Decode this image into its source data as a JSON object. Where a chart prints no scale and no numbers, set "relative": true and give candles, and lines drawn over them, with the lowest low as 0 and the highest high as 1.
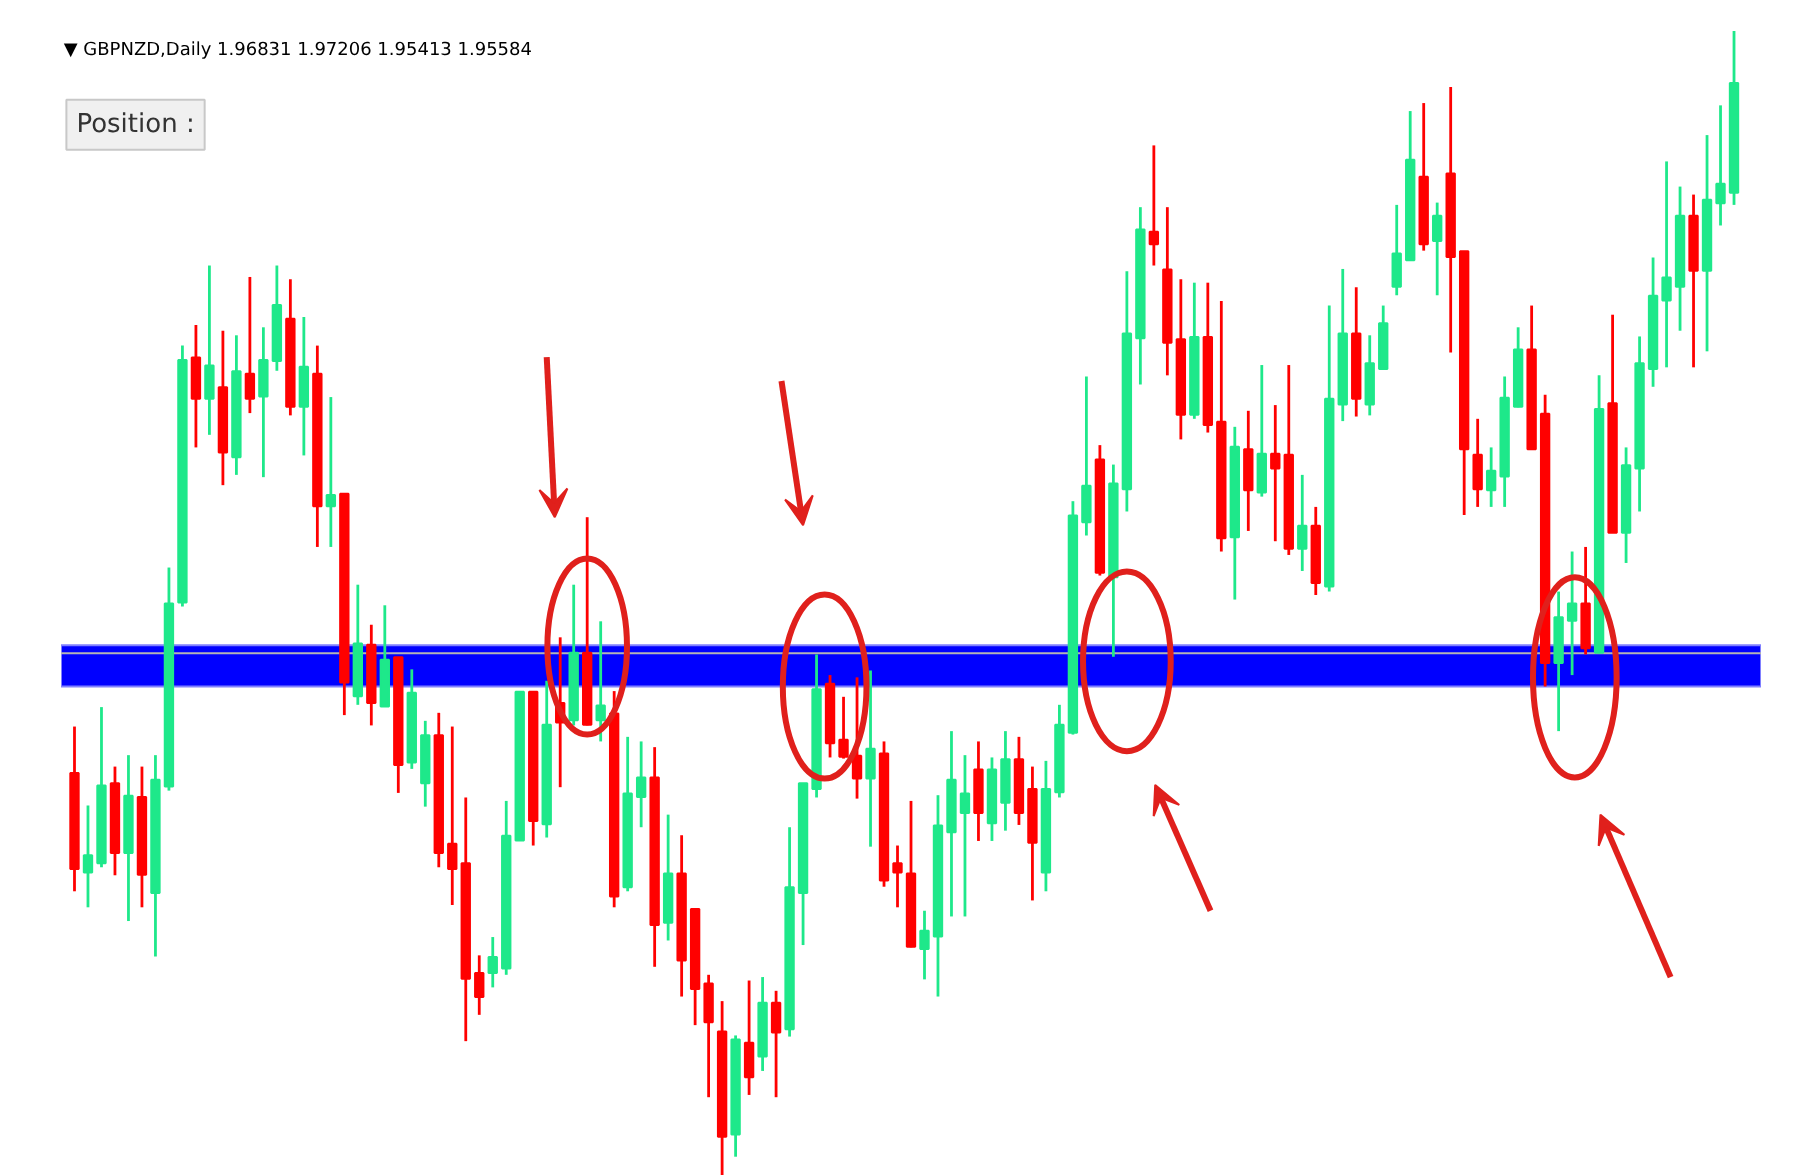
{
  "chart_data": {
    "type": "candlestick",
    "title": "▼ GBPNZD,Daily  1.96831 1.97206 1.95413 1.95584",
    "annotations": [
      "Position :"
    ],
    "relative": true,
    "grid": false,
    "categories": [
      null,
      null,
      null,
      null,
      null,
      null,
      null,
      null,
      null,
      null,
      null,
      null,
      null,
      null,
      null,
      null,
      null,
      null,
      null,
      null,
      null,
      null,
      null,
      null,
      null,
      null,
      null,
      null,
      null,
      null,
      null,
      null,
      null,
      null,
      null,
      null,
      null,
      null,
      null,
      null,
      null,
      null,
      null,
      null,
      null,
      null,
      null,
      null,
      null,
      null,
      null,
      null,
      null,
      null,
      null,
      null,
      null,
      null,
      null,
      null,
      null,
      null,
      null,
      null,
      null,
      null,
      null,
      null,
      null,
      null,
      null,
      null,
      null,
      null,
      null,
      null,
      null,
      null,
      null,
      null,
      null,
      null,
      null,
      null,
      null,
      null,
      null,
      null,
      null,
      null,
      null,
      null,
      null,
      null,
      null,
      null,
      null,
      null,
      null,
      null,
      null,
      null,
      null,
      null,
      null,
      null,
      null,
      null,
      null,
      null,
      null,
      null,
      null,
      null,
      null,
      null,
      null,
      null,
      null,
      null,
      null,
      null,
      null,
      null
    ],
    "ohlc": [
      [
        0.35,
        0.392,
        0.248,
        0.269
      ],
      [
        0.266,
        0.323,
        0.234,
        0.278
      ],
      [
        0.274,
        0.409,
        0.269,
        0.339
      ],
      [
        0.341,
        0.357,
        0.262,
        0.283
      ],
      [
        0.283,
        0.367,
        0.222,
        0.33
      ],
      [
        0.329,
        0.357,
        0.234,
        0.264
      ],
      [
        0.248,
        0.367,
        0.191,
        0.344
      ],
      [
        0.341,
        0.531,
        0.336,
        0.498
      ],
      [
        0.502,
        0.725,
        0.497,
        0.711
      ],
      [
        0.713,
        0.743,
        0.636,
        0.68
      ],
      [
        0.68,
        0.795,
        0.647,
        0.706
      ],
      [
        0.687,
        0.738,
        0.603,
        0.633
      ],
      [
        0.629,
        0.734,
        0.612,
        0.701
      ],
      [
        0.699,
        0.785,
        0.666,
        0.68
      ],
      [
        0.682,
        0.741,
        0.61,
        0.711
      ],
      [
        0.713,
        0.795,
        0.703,
        0.759
      ],
      [
        0.747,
        0.783,
        0.664,
        0.673
      ],
      [
        0.673,
        0.75,
        0.629,
        0.705
      ],
      [
        0.699,
        0.725,
        0.549,
        0.586
      ],
      [
        0.586,
        0.68,
        0.549,
        0.593
      ],
      [
        0.594,
        0.594,
        0.402,
        0.432
      ],
      [
        0.42,
        0.516,
        0.411,
        0.463
      ],
      [
        0.462,
        0.481,
        0.393,
        0.414
      ],
      [
        0.411,
        0.498,
        0.411,
        0.449
      ],
      [
        0.451,
        0.451,
        0.334,
        0.36
      ],
      [
        0.362,
        0.442,
        0.355,
        0.42
      ],
      [
        0.344,
        0.397,
        0.322,
        0.383
      ],
      [
        0.383,
        0.404,
        0.269,
        0.283
      ],
      [
        0.288,
        0.392,
        0.236,
        0.269
      ],
      [
        0.271,
        0.33,
        0.117,
        0.173
      ],
      [
        0.175,
        0.192,
        0.14,
        0.157
      ],
      [
        0.178,
        0.208,
        0.164,
        0.189
      ],
      [
        0.182,
        0.327,
        0.175,
        0.295
      ],
      [
        0.294,
        0.421,
        0.292,
        0.421
      ],
      [
        0.421,
        0.421,
        0.288,
        0.311
      ],
      [
        0.308,
        0.432,
        0.295,
        0.392
      ],
      [
        0.411,
        0.47,
        0.339,
        0.397
      ],
      [
        0.399,
        0.516,
        0.393,
        0.455
      ],
      [
        0.455,
        0.575,
        0.393,
        0.395
      ],
      [
        0.399,
        0.484,
        0.379,
        0.409
      ],
      [
        0.402,
        0.423,
        0.234,
        0.245
      ],
      [
        0.253,
        0.383,
        0.248,
        0.332
      ],
      [
        0.332,
        0.379,
        0.304,
        0.346
      ],
      [
        0.346,
        0.374,
        0.182,
        0.22
      ],
      [
        0.222,
        0.315,
        0.205,
        0.262
      ],
      [
        0.262,
        0.297,
        0.156,
        0.189
      ],
      [
        0.231,
        0.231,
        0.131,
        0.164
      ],
      [
        0.166,
        0.175,
        0.068,
        0.135
      ],
      [
        0.124,
        0.152,
        0.0,
        0.035
      ],
      [
        0.037,
        0.122,
        0.016,
        0.117
      ],
      [
        0.114,
        0.17,
        0.07,
        0.087
      ],
      [
        0.105,
        0.173,
        0.091,
        0.149
      ],
      [
        0.149,
        0.161,
        0.068,
        0.126
      ],
      [
        0.129,
        0.304,
        0.121,
        0.25
      ],
      [
        0.248,
        0.341,
        0.201,
        0.341
      ],
      [
        0.339,
        0.455,
        0.33,
        0.423
      ],
      [
        0.428,
        0.437,
        0.365,
        0.379
      ],
      [
        0.379,
        0.418,
        0.364,
        0.367
      ],
      [
        0.365,
        0.435,
        0.329,
        0.348
      ],
      [
        0.348,
        0.441,
        0.287,
        0.371
      ],
      [
        0.367,
        0.379,
        0.252,
        0.259
      ],
      [
        0.271,
        0.288,
        0.234,
        0.266
      ],
      [
        0.262,
        0.327,
        0.199,
        0.201
      ],
      [
        0.199,
        0.231,
        0.171,
        0.212
      ],
      [
        0.21,
        0.332,
        0.156,
        0.304
      ],
      [
        0.301,
        0.388,
        0.226,
        0.344
      ],
      [
        0.318,
        0.367,
        0.226,
        0.332
      ],
      [
        0.353,
        0.379,
        0.292,
        0.318
      ],
      [
        0.309,
        0.365,
        0.292,
        0.353
      ],
      [
        0.327,
        0.388,
        0.301,
        0.362
      ],
      [
        0.362,
        0.383,
        0.306,
        0.318
      ],
      [
        0.336,
        0.357,
        0.24,
        0.292
      ],
      [
        0.266,
        0.362,
        0.248,
        0.336
      ],
      [
        0.336,
        0.411,
        0.33,
        0.392
      ],
      [
        0.388,
        0.589,
        0.385,
        0.575
      ],
      [
        0.572,
        0.698,
        0.559,
        0.601
      ],
      [
        0.624,
        0.638,
        0.524,
        0.528
      ],
      [
        0.524,
        0.621,
        0.453,
        0.603
      ],
      [
        0.601,
        0.79,
        0.58,
        0.734
      ],
      [
        0.733,
        0.846,
        0.691,
        0.825
      ],
      [
        0.823,
        0.9,
        0.795,
        0.815
      ],
      [
        0.79,
        0.846,
        0.699,
        0.729
      ],
      [
        0.729,
        0.783,
        0.643,
        0.666
      ],
      [
        0.666,
        0.78,
        0.661,
        0.731
      ],
      [
        0.731,
        0.78,
        0.649,
        0.657
      ],
      [
        0.657,
        0.764,
        0.545,
        0.558
      ],
      [
        0.559,
        0.654,
        0.503,
        0.635
      ],
      [
        0.633,
        0.668,
        0.563,
        0.6
      ],
      [
        0.598,
        0.708,
        0.593,
        0.629
      ],
      [
        0.629,
        0.673,
        0.554,
        0.619
      ],
      [
        0.628,
        0.708,
        0.542,
        0.549
      ],
      [
        0.549,
        0.612,
        0.528,
        0.566
      ],
      [
        0.566,
        0.584,
        0.507,
        0.519
      ],
      [
        0.516,
        0.76,
        0.51,
        0.677
      ],
      [
        0.675,
        0.792,
        0.659,
        0.734
      ],
      [
        0.734,
        0.776,
        0.663,
        0.68
      ],
      [
        0.675,
        0.734,
        0.664,
        0.708
      ],
      [
        0.706,
        0.76,
        0.706,
        0.743
      ],
      [
        0.778,
        0.848,
        0.769,
        0.804
      ],
      [
        0.801,
        0.93,
        0.799,
        0.886
      ],
      [
        0.871,
        0.937,
        0.808,
        0.815
      ],
      [
        0.818,
        0.85,
        0.769,
        0.837
      ],
      [
        0.874,
        0.951,
        0.719,
        0.804
      ],
      [
        0.806,
        0.806,
        0.577,
        0.636
      ],
      [
        0.628,
        0.661,
        0.584,
        0.601
      ],
      [
        0.6,
        0.636,
        0.584,
        0.614
      ],
      [
        0.612,
        0.698,
        0.584,
        0.678
      ],
      [
        0.673,
        0.741,
        0.671,
        0.72
      ],
      [
        0.72,
        0.76,
        0.636,
        0.636
      ],
      [
        0.664,
        0.682,
        0.427,
        0.449
      ],
      [
        0.449,
        0.51,
        0.388,
        0.486
      ],
      [
        0.486,
        0.545,
        0.437,
        0.498
      ],
      [
        0.498,
        0.549,
        0.455,
        0.462
      ],
      [
        0.458,
        0.699,
        0.456,
        0.668
      ],
      [
        0.673,
        0.752,
        0.563,
        0.563
      ],
      [
        0.563,
        0.636,
        0.535,
        0.619
      ],
      [
        0.619,
        0.733,
        0.58,
        0.708
      ],
      [
        0.706,
        0.802,
        0.689,
        0.767
      ],
      [
        0.766,
        0.886,
        0.706,
        0.783
      ],
      [
        0.778,
        0.864,
        0.738,
        0.837
      ],
      [
        0.837,
        0.857,
        0.706,
        0.792
      ],
      [
        0.792,
        0.909,
        0.72,
        0.851
      ],
      [
        0.851,
        0.935,
        0.83,
        0.865
      ],
      [
        0.86,
        1.0,
        0.848,
        0.953
      ]
    ],
    "colors": [
      "#ff0000",
      "#1ee88a",
      "#1ee88a",
      "#ff0000",
      "#1ee88a",
      "#ff0000",
      "#1ee88a",
      "#1ee88a",
      "#1ee88a",
      "#ff0000",
      "#1ee88a",
      "#ff0000",
      "#1ee88a",
      "#ff0000",
      "#1ee88a",
      "#1ee88a",
      "#ff0000",
      "#1ee88a",
      "#ff0000",
      "#1ee88a",
      "#ff0000",
      "#1ee88a",
      "#ff0000",
      "#1ee88a",
      "#ff0000",
      "#1ee88a",
      "#1ee88a",
      "#ff0000",
      "#ff0000",
      "#ff0000",
      "#ff0000",
      "#1ee88a",
      "#1ee88a",
      "#1ee88a",
      "#ff0000",
      "#1ee88a",
      "#ff0000",
      "#1ee88a",
      "#ff0000",
      "#1ee88a",
      "#ff0000",
      "#1ee88a",
      "#1ee88a",
      "#ff0000",
      "#1ee88a",
      "#ff0000",
      "#ff0000",
      "#ff0000",
      "#ff0000",
      "#1ee88a",
      "#ff0000",
      "#1ee88a",
      "#ff0000",
      "#1ee88a",
      "#1ee88a",
      "#1ee88a",
      "#ff0000",
      "#ff0000",
      "#ff0000",
      "#1ee88a",
      "#ff0000",
      "#ff0000",
      "#ff0000",
      "#1ee88a",
      "#1ee88a",
      "#1ee88a",
      "#1ee88a",
      "#ff0000",
      "#1ee88a",
      "#1ee88a",
      "#ff0000",
      "#ff0000",
      "#1ee88a",
      "#1ee88a",
      "#1ee88a",
      "#1ee88a",
      "#ff0000",
      "#1ee88a",
      "#1ee88a",
      "#1ee88a",
      "#ff0000",
      "#ff0000",
      "#ff0000",
      "#1ee88a",
      "#ff0000",
      "#ff0000",
      "#1ee88a",
      "#ff0000",
      "#1ee88a",
      "#ff0000",
      "#ff0000",
      "#1ee88a",
      "#ff0000",
      "#1ee88a",
      "#1ee88a",
      "#ff0000",
      "#1ee88a",
      "#1ee88a",
      "#1ee88a",
      "#1ee88a",
      "#ff0000",
      "#1ee88a",
      "#ff0000",
      "#ff0000",
      "#ff0000",
      "#1ee88a",
      "#1ee88a",
      "#1ee88a",
      "#ff0000",
      "#ff0000",
      "#1ee88a",
      "#1ee88a",
      "#ff0000",
      "#1ee88a",
      "#ff0000",
      "#1ee88a",
      "#1ee88a",
      "#1ee88a",
      "#1ee88a",
      "#1ee88a",
      "#ff0000",
      "#1ee88a",
      "#1ee88a",
      "#1ee88a"
    ],
    "ref_lines": [
      {
        "axis": "y",
        "value": 0.456,
        "color": "#b4b4b4"
      }
    ],
    "bands": [
      {
        "axis": "y",
        "from": 0.427,
        "to": 0.463,
        "color": "#0000ff"
      }
    ]
  }
}
